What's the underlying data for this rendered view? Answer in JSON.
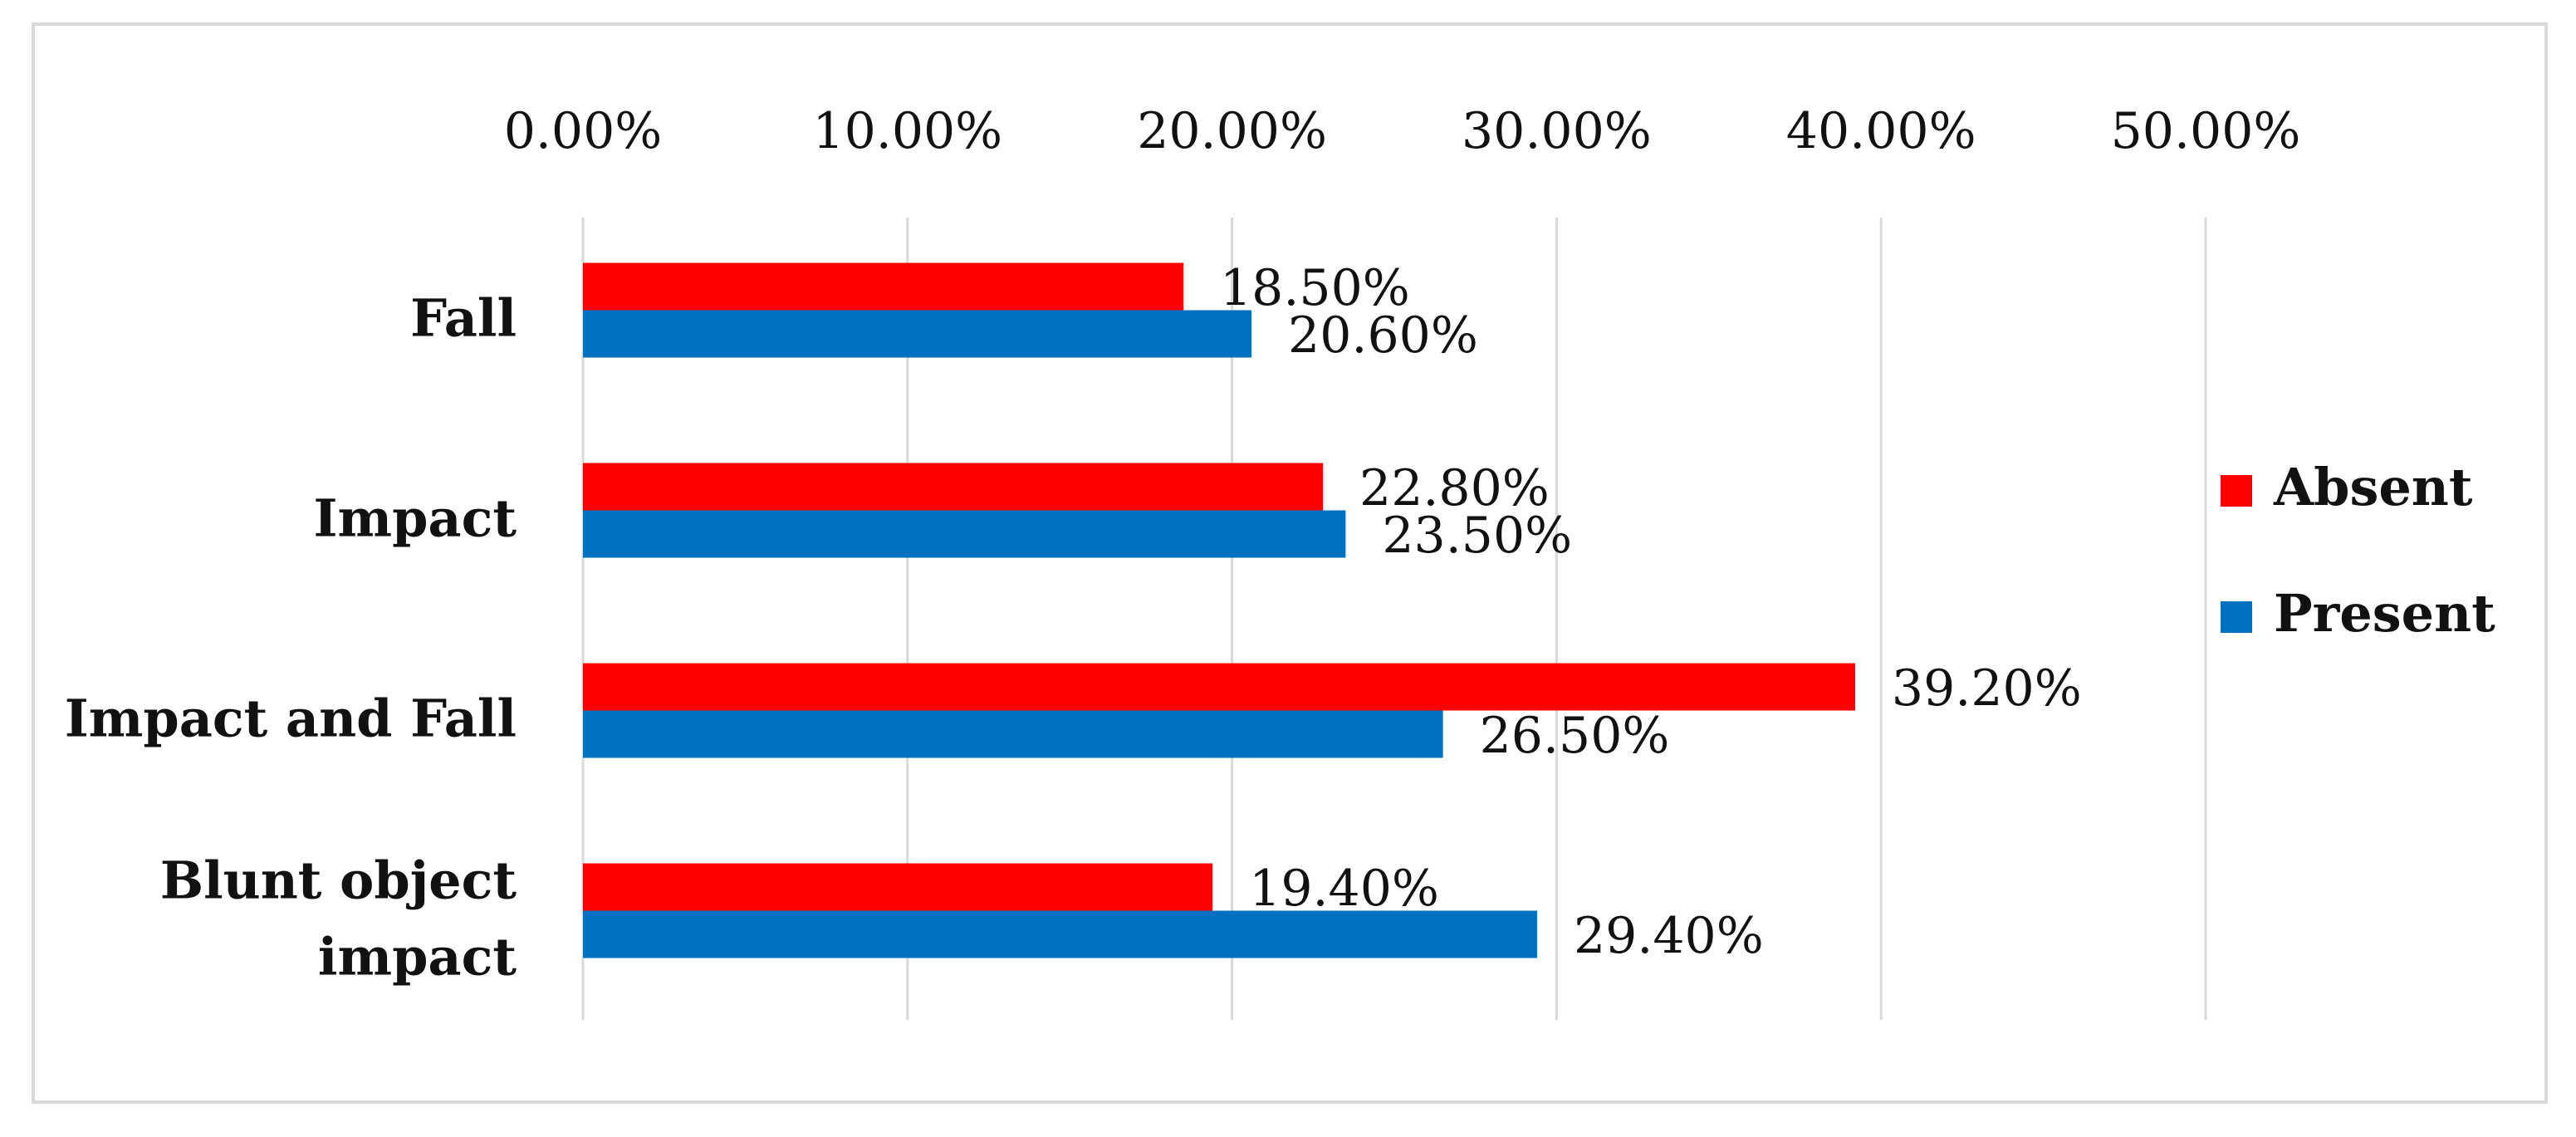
{
  "chart_data": {
    "type": "bar",
    "orientation": "horizontal",
    "categories": [
      [
        "Fall"
      ],
      [
        "Impact"
      ],
      [
        "Impact and Fall"
      ],
      [
        "Blunt object",
        "impact"
      ]
    ],
    "series": [
      {
        "name": "Absent",
        "color": "#ff0000",
        "values": [
          18.5,
          22.8,
          39.2,
          19.4
        ]
      },
      {
        "name": "Present",
        "color": "#0070c0",
        "values": [
          20.6,
          23.5,
          26.5,
          29.4
        ]
      }
    ],
    "data_labels": [
      [
        "18.50%",
        "22.80%",
        "39.20%",
        "19.40%"
      ],
      [
        "20.60%",
        "23.50%",
        "26.50%",
        "29.40%"
      ]
    ],
    "x_ticks": [
      "0.00%",
      "10.00%",
      "20.00%",
      "30.00%",
      "40.00%",
      "50.00%"
    ],
    "xlim": [
      0,
      50
    ],
    "x_axis_position": "top",
    "grid": true,
    "legend_position": "right",
    "title": "",
    "xlabel": "",
    "ylabel": ""
  }
}
